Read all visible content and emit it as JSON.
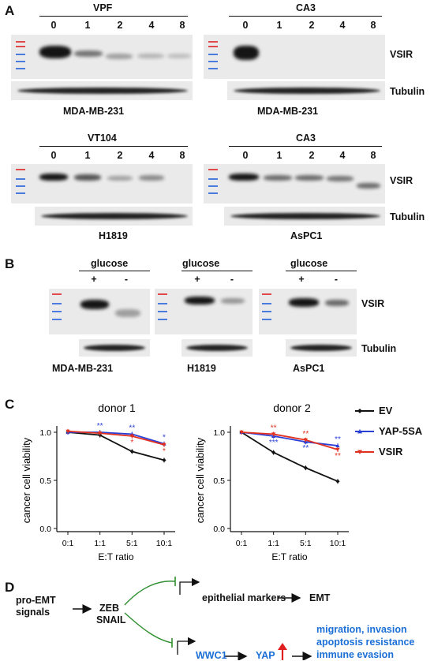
{
  "panels": {
    "a": "A",
    "b": "B",
    "c": "C",
    "d": "D"
  },
  "panel_a": {
    "blots": [
      {
        "treatment": "VPF",
        "lanes": [
          "0",
          "1",
          "2",
          "4",
          "8"
        ],
        "cell_line": "MDA-MB-231"
      },
      {
        "treatment": "CA3",
        "lanes": [
          "0",
          "1",
          "2",
          "4",
          "8"
        ],
        "cell_line": "MDA-MB-231"
      },
      {
        "treatment": "VT104",
        "lanes": [
          "0",
          "1",
          "2",
          "4",
          "8"
        ],
        "cell_line": "H1819"
      },
      {
        "treatment": "CA3",
        "lanes": [
          "0",
          "1",
          "2",
          "4",
          "8"
        ],
        "cell_line": "AsPC1"
      }
    ],
    "protein_labels": {
      "vsir": "VSIR",
      "tubulin": "Tubulin"
    }
  },
  "panel_b": {
    "blots": [
      {
        "treatment": "glucose",
        "plus": "+",
        "minus": "-",
        "cell_line": "MDA-MB-231"
      },
      {
        "treatment": "glucose",
        "plus": "+",
        "minus": "-",
        "cell_line": "H1819"
      },
      {
        "treatment": "glucose",
        "plus": "+",
        "minus": "-",
        "cell_line": "AsPC1"
      }
    ],
    "protein_labels": {
      "vsir": "VSIR",
      "tubulin": "Tubulin"
    }
  },
  "chart_data": [
    {
      "type": "line",
      "title": "donor 1",
      "xlabel": "E:T ratio",
      "ylabel": "cancer cell viability",
      "categories": [
        "0:1",
        "1:1",
        "5:1",
        "10:1"
      ],
      "ylim": [
        0,
        1.0
      ],
      "yticks": [
        "0.0",
        "0.5",
        "1.0"
      ],
      "series": [
        {
          "name": "EV",
          "color": "#111111",
          "values": [
            1.0,
            0.97,
            0.8,
            0.71
          ]
        },
        {
          "name": "YAP-5SA",
          "color": "#2a3fd6",
          "values": [
            1.0,
            1.0,
            0.98,
            0.88
          ]
        },
        {
          "name": "VSIR",
          "color": "#e03020",
          "values": [
            1.01,
            0.99,
            0.96,
            0.87
          ]
        }
      ],
      "annotations": [
        {
          "x": "1:1",
          "y": 1.0,
          "text": "**",
          "color": "#2a3fd6"
        },
        {
          "x": "5:1",
          "y": 0.98,
          "text": "**",
          "color": "#2a3fd6"
        },
        {
          "x": "5:1",
          "y": 0.96,
          "text": "*",
          "color": "#e03020"
        },
        {
          "x": "10:1",
          "y": 0.88,
          "text": "*",
          "color": "#2a3fd6"
        },
        {
          "x": "10:1",
          "y": 0.87,
          "text": "*",
          "color": "#e03020"
        }
      ]
    },
    {
      "type": "line",
      "title": "donor 2",
      "xlabel": "E:T ratio",
      "ylabel": "cancer cell viability",
      "categories": [
        "0:1",
        "1:1",
        "5:1",
        "10:1"
      ],
      "ylim": [
        0,
        1.0
      ],
      "yticks": [
        "0.0",
        "0.5",
        "1.0"
      ],
      "series": [
        {
          "name": "EV",
          "color": "#111111",
          "values": [
            1.0,
            0.79,
            0.63,
            0.49
          ]
        },
        {
          "name": "YAP-5SA",
          "color": "#2a3fd6",
          "values": [
            1.0,
            0.96,
            0.9,
            0.86
          ]
        },
        {
          "name": "VSIR",
          "color": "#e03020",
          "values": [
            1.0,
            0.98,
            0.92,
            0.82
          ]
        }
      ],
      "annotations": [
        {
          "x": "1:1",
          "y": 0.98,
          "text": "**",
          "color": "#e03020"
        },
        {
          "x": "1:1",
          "y": 0.96,
          "text": "***",
          "color": "#2a3fd6"
        },
        {
          "x": "5:1",
          "y": 0.92,
          "text": "**",
          "color": "#e03020"
        },
        {
          "x": "5:1",
          "y": 0.9,
          "text": "**",
          "color": "#2a3fd6"
        },
        {
          "x": "10:1",
          "y": 0.86,
          "text": "**",
          "color": "#2a3fd6"
        },
        {
          "x": "10:1",
          "y": 0.82,
          "text": "**",
          "color": "#e03020"
        }
      ]
    }
  ],
  "legend": {
    "placement": "right"
  },
  "panel_d": {
    "pro_emt_line1": "pro-EMT",
    "pro_emt_line2": "signals",
    "zeb": "ZEB",
    "snail": "SNAIL",
    "epithelial": "epithelial markers",
    "emt": "EMT",
    "wwc1": "WWC1",
    "yap": "YAP",
    "outcomes": [
      "migration, invasion",
      "apoptosis resistance",
      "immune evasion"
    ],
    "colors": {
      "blue": "#1b6fd6",
      "green": "#2f8f2f",
      "red": "#e02020"
    }
  }
}
